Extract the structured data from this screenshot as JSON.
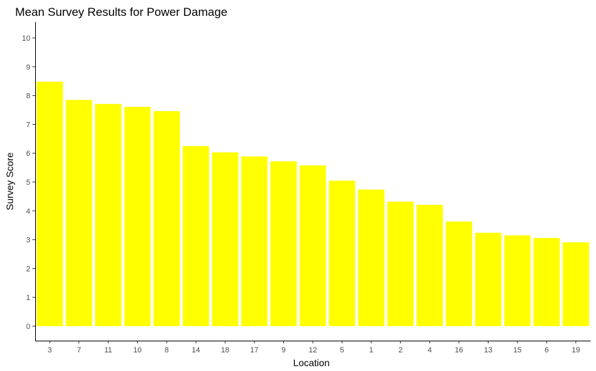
{
  "chart_data": {
    "type": "bar",
    "title": "Mean Survey Results for Power Damage",
    "xlabel": "Location",
    "ylabel": "Survey Score",
    "categories": [
      "3",
      "7",
      "11",
      "10",
      "8",
      "14",
      "18",
      "17",
      "9",
      "12",
      "5",
      "1",
      "2",
      "4",
      "16",
      "13",
      "15",
      "6",
      "19"
    ],
    "values": [
      8.48,
      7.85,
      7.71,
      7.61,
      7.46,
      6.25,
      6.03,
      5.89,
      5.72,
      5.58,
      5.05,
      4.74,
      4.32,
      4.21,
      3.63,
      3.24,
      3.15,
      3.06,
      2.91
    ],
    "ylim": [
      0,
      10.5
    ],
    "yticks": [
      "0",
      "1",
      "2",
      "3",
      "4",
      "5",
      "6",
      "7",
      "8",
      "9",
      "10"
    ],
    "bar_color": "#FFFF00",
    "grid": false,
    "legend": false
  }
}
